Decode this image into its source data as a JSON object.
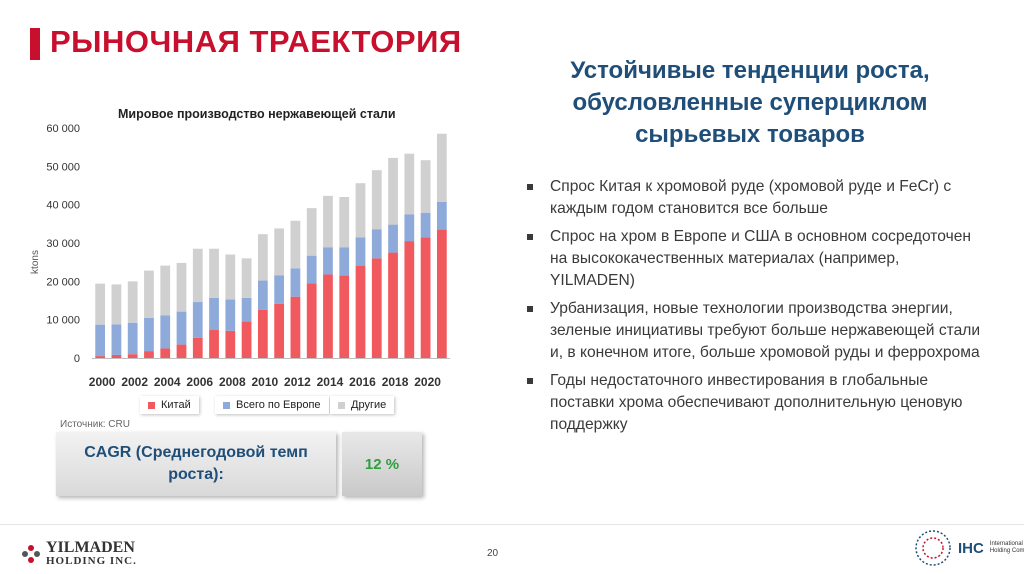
{
  "page": {
    "title": "РЫНОЧНАЯ ТРАЕКТОРИЯ",
    "heading": "Устойчивые тенденции роста, обусловленные суперциклом сырьевых товаров",
    "page_number": "20"
  },
  "bullets": [
    "Спрос Китая к хромовой руде (хромовой руде и FeCr) с каждым годом становится все больше",
    "Спрос на хром в Европе и США в основном сосредоточен на высококачественных материалах (например, YILMADEN)",
    "Урбанизация, новые технологии производства энергии, зеленые инициативы требуют больше нержавеющей стали и, в конечном итоге, больше хромовой руды и феррохрома",
    "Годы недостаточного инвестирования в глобальные поставки хрома обеспечивают дополнительную ценовую поддержку"
  ],
  "chart_data": {
    "type": "bar",
    "stacked": true,
    "title": "Мировое производство нержавеющей стали",
    "ylabel": "ktons",
    "xlabel": "",
    "ylim": [
      0,
      60000
    ],
    "yticks": [
      0,
      10000,
      20000,
      30000,
      40000,
      50000,
      60000
    ],
    "ytick_labels": [
      "0",
      "10 000",
      "20 000",
      "30 000",
      "40 000",
      "50 000",
      "60 000"
    ],
    "x": [
      2000,
      2001,
      2002,
      2003,
      2004,
      2005,
      2006,
      2007,
      2008,
      2009,
      2010,
      2011,
      2012,
      2013,
      2014,
      2015,
      2016,
      2017,
      2018,
      2019,
      2020,
      2021
    ],
    "xtick_labels": [
      "2000",
      "2002",
      "2004",
      "2006",
      "2008",
      "2010",
      "2012",
      "2014",
      "2016",
      "2018",
      "2020"
    ],
    "series": [
      {
        "name": "Китай",
        "color": "#f05a5e",
        "values": [
          500,
          800,
          1000,
          1800,
          2500,
          3500,
          5300,
          7300,
          7100,
          9500,
          12600,
          14100,
          16000,
          19500,
          21800,
          21500,
          24100,
          26000,
          27500,
          30500,
          31500,
          33500
        ]
      },
      {
        "name": "Всего по Европе",
        "color": "#8eaadb",
        "values": [
          8200,
          8000,
          8200,
          8700,
          8600,
          8600,
          9300,
          8400,
          8200,
          6200,
          7600,
          7500,
          7400,
          7200,
          7100,
          7400,
          7400,
          7600,
          7300,
          7000,
          6400,
          7200
        ]
      },
      {
        "name": "Другие",
        "color": "#d0d0d0",
        "values": [
          10700,
          10400,
          10800,
          12300,
          13000,
          12700,
          13900,
          12800,
          11700,
          10300,
          12100,
          12200,
          12400,
          12400,
          13400,
          13100,
          14100,
          15400,
          17400,
          15800,
          13700,
          17800
        ]
      }
    ],
    "legend_position": "bottom",
    "grid": false
  },
  "source": "Источник: CRU",
  "cagr": {
    "label": "CAGR (Среднегодовой темп роста):",
    "value": "12 %"
  },
  "logos": {
    "left_name": "YILMADEN",
    "left_sub": "HOLDING INC.",
    "right_name": "IHC",
    "right_sub": "International Holding Company"
  }
}
